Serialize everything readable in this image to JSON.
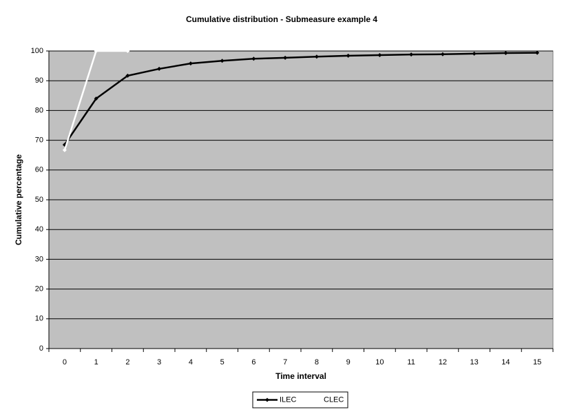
{
  "chart_data": {
    "type": "line",
    "title": "Cumulative distribution - Submeasure example 4",
    "x_label": "Time interval",
    "y_label": "Cumulative percentage",
    "categories": [
      0,
      1,
      2,
      3,
      4,
      5,
      6,
      7,
      8,
      9,
      10,
      11,
      12,
      13,
      14,
      15
    ],
    "series": [
      {
        "name": "ILEC",
        "color": "#000000",
        "values": [
          68.5,
          84,
          91.7,
          94,
          95.8,
          96.7,
          97.4,
          97.7,
          98.1,
          98.4,
          98.6,
          98.8,
          98.9,
          99.1,
          99.3,
          99.4
        ]
      },
      {
        "name": "CLEC",
        "color": "#ffffff",
        "values": [
          66.7,
          100,
          100,
          null,
          null,
          null,
          null,
          null,
          null,
          null,
          null,
          null,
          null,
          null,
          null,
          null
        ]
      }
    ],
    "ylim": [
      0,
      100
    ],
    "yticks": [
      0,
      10,
      20,
      30,
      40,
      50,
      60,
      70,
      80,
      90,
      100
    ],
    "grid": true,
    "plot_background": "#c0c0c0",
    "legend": "bottom"
  }
}
